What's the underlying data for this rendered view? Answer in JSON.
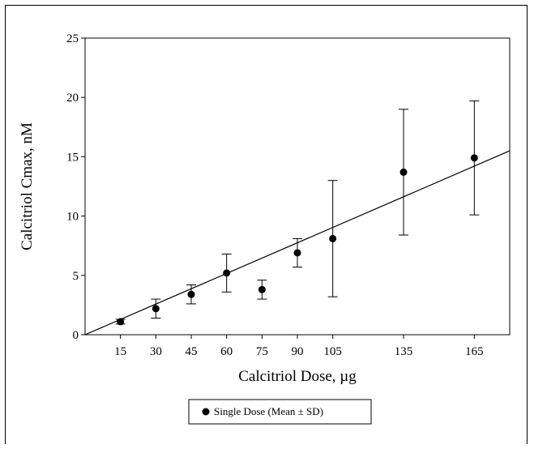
{
  "chart_data": {
    "type": "scatter",
    "xlabel": "Calcitriol Dose, µg",
    "ylabel": "Calcitriol Cmax, nM",
    "x_ticks": [
      15,
      30,
      45,
      60,
      75,
      90,
      105,
      135,
      165
    ],
    "y_ticks": [
      0,
      5,
      10,
      15,
      20,
      25
    ],
    "xlim": [
      0,
      180
    ],
    "ylim": [
      0,
      25
    ],
    "grid": false,
    "legend_position": "bottom-center",
    "series": [
      {
        "name": "Single Dose (Mean ± SD)",
        "marker": "filled-circle",
        "color": "#000000",
        "points": [
          {
            "x": 15,
            "y": 1.1,
            "err_low": 0.9,
            "err_high": 1.3
          },
          {
            "x": 30,
            "y": 2.2,
            "err_low": 1.4,
            "err_high": 3.0
          },
          {
            "x": 45,
            "y": 3.4,
            "err_low": 2.6,
            "err_high": 4.2
          },
          {
            "x": 60,
            "y": 5.2,
            "err_low": 3.6,
            "err_high": 6.8
          },
          {
            "x": 75,
            "y": 3.8,
            "err_low": 3.0,
            "err_high": 4.6
          },
          {
            "x": 90,
            "y": 6.9,
            "err_low": 5.7,
            "err_high": 8.1
          },
          {
            "x": 105,
            "y": 8.1,
            "err_low": 3.2,
            "err_high": 13.0
          },
          {
            "x": 135,
            "y": 13.7,
            "err_low": 8.4,
            "err_high": 19.0
          },
          {
            "x": 165,
            "y": 14.9,
            "err_low": 10.1,
            "err_high": 19.7
          }
        ]
      }
    ],
    "fit_line": {
      "x": [
        0,
        180
      ],
      "y": [
        0,
        15.5
      ]
    }
  }
}
